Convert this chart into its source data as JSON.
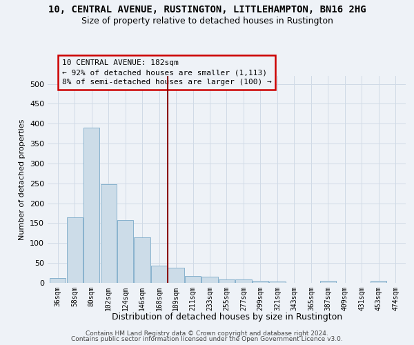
{
  "title1": "10, CENTRAL AVENUE, RUSTINGTON, LITTLEHAMPTON, BN16 2HG",
  "title2": "Size of property relative to detached houses in Rustington",
  "xlabel": "Distribution of detached houses by size in Rustington",
  "ylabel": "Number of detached properties",
  "footer1": "Contains HM Land Registry data © Crown copyright and database right 2024.",
  "footer2": "Contains public sector information licensed under the Open Government Licence v3.0.",
  "annotation_title": "10 CENTRAL AVENUE: 182sqm",
  "annotation_line1": "← 92% of detached houses are smaller (1,113)",
  "annotation_line2": "8% of semi-detached houses are larger (100) →",
  "bar_color": "#ccdce8",
  "bar_edgecolor": "#7aaac8",
  "vline_color": "#8b0000",
  "annotation_box_edgecolor": "#cc0000",
  "grid_color": "#d0dae6",
  "categories": [
    "36sqm",
    "58sqm",
    "80sqm",
    "102sqm",
    "124sqm",
    "146sqm",
    "168sqm",
    "189sqm",
    "211sqm",
    "233sqm",
    "255sqm",
    "277sqm",
    "299sqm",
    "321sqm",
    "343sqm",
    "365sqm",
    "387sqm",
    "409sqm",
    "431sqm",
    "453sqm",
    "474sqm"
  ],
  "values": [
    13,
    165,
    390,
    248,
    157,
    114,
    43,
    38,
    18,
    15,
    9,
    9,
    6,
    4,
    0,
    0,
    5,
    0,
    0,
    5,
    0
  ],
  "vline_index": 7,
  "ylim": [
    0,
    520
  ],
  "yticks": [
    0,
    50,
    100,
    150,
    200,
    250,
    300,
    350,
    400,
    450,
    500
  ],
  "bg_color": "#eef2f7"
}
